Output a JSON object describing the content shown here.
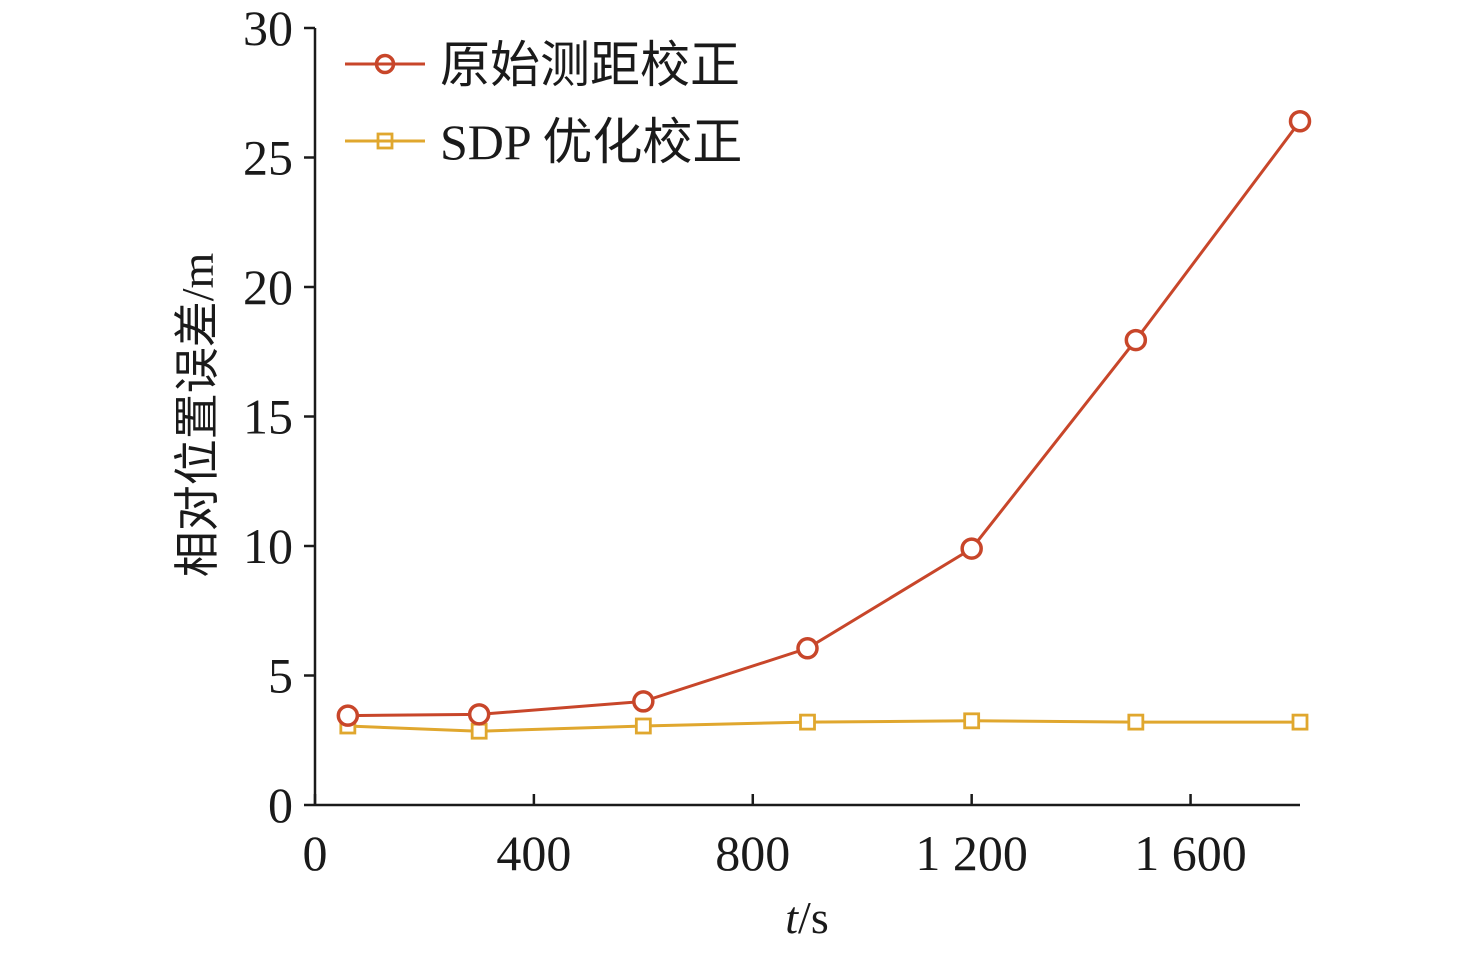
{
  "chart_data": {
    "type": "line",
    "x": [
      60,
      300,
      600,
      900,
      1200,
      1500,
      1800
    ],
    "series": [
      {
        "name": "原始测距校正",
        "values": [
          3.45,
          3.5,
          4.0,
          6.05,
          9.9,
          17.95,
          26.4
        ],
        "color": "#c8462a",
        "marker": "circle"
      },
      {
        "name": "SDP 优化校正",
        "values": [
          3.05,
          2.85,
          3.05,
          3.2,
          3.25,
          3.2,
          3.2
        ],
        "color": "#e0a72e",
        "marker": "square"
      }
    ],
    "xlabel_italic": "t",
    "xlabel_rest": "/s",
    "ylabel": "相对位置误差/m",
    "xlim": [
      0,
      1800
    ],
    "ylim": [
      0,
      30
    ],
    "xticks": [
      0,
      400,
      800,
      1200,
      1600
    ],
    "xtick_labels": [
      "0",
      "400",
      "800",
      "1 200",
      "1 600"
    ],
    "yticks": [
      0,
      5,
      10,
      15,
      20,
      25,
      30
    ],
    "ytick_labels": [
      "0",
      "5",
      "10",
      "15",
      "20",
      "25",
      "30"
    ],
    "legend_position": "top-left",
    "grid": false
  }
}
